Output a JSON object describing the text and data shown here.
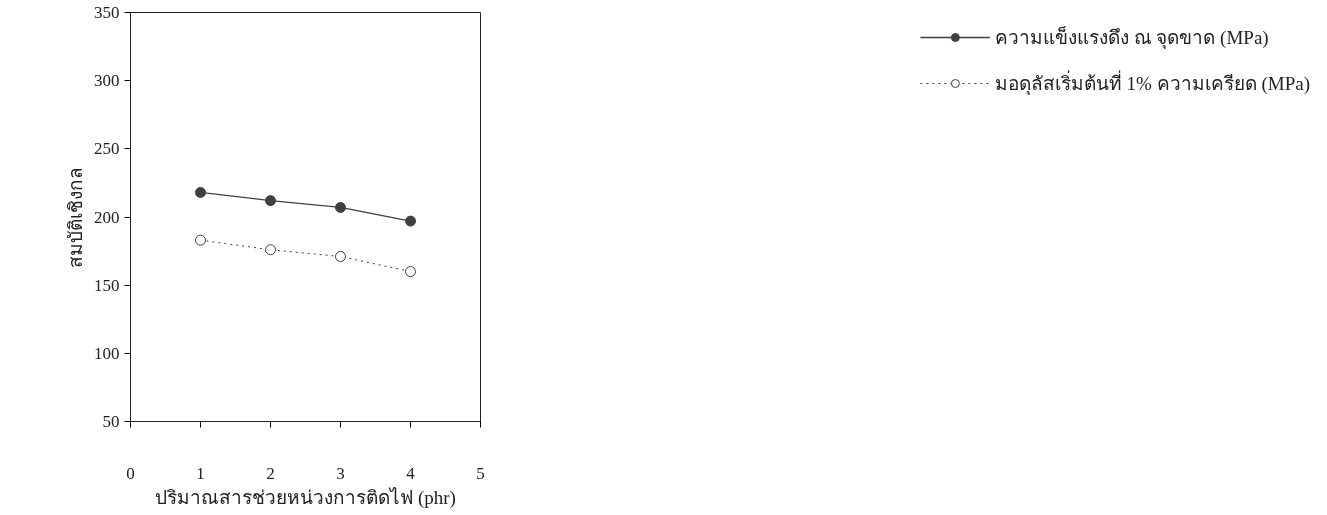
{
  "chart_data": {
    "type": "line",
    "xlabel": "ปริมาณสารช่วยหน่วงการติดไฟ (phr)",
    "ylabel": "สมบัติเชิงกล",
    "x": [
      1,
      2,
      3,
      4
    ],
    "series": [
      {
        "name": "ความแข็งแรงดึง ณ จุดขาด (MPa)",
        "color": "#404040",
        "values": [
          218,
          212,
          207,
          197
        ],
        "line_style": "solid",
        "marker": "circle"
      },
      {
        "name": "มอดุลัสเริ่มต้นที่ 1% ความเครียด (MPa)",
        "color": "#404040",
        "values": [
          183,
          176,
          171,
          160
        ],
        "line_style": "dotted",
        "marker": "circle_open"
      }
    ],
    "xlim": [
      0,
      5
    ],
    "ylim": [
      50,
      350
    ],
    "xticks": [
      0,
      1,
      2,
      3,
      4,
      5
    ],
    "yticks": [
      50,
      100,
      150,
      200,
      250,
      300,
      350
    ],
    "grid": false,
    "legend": "right"
  }
}
